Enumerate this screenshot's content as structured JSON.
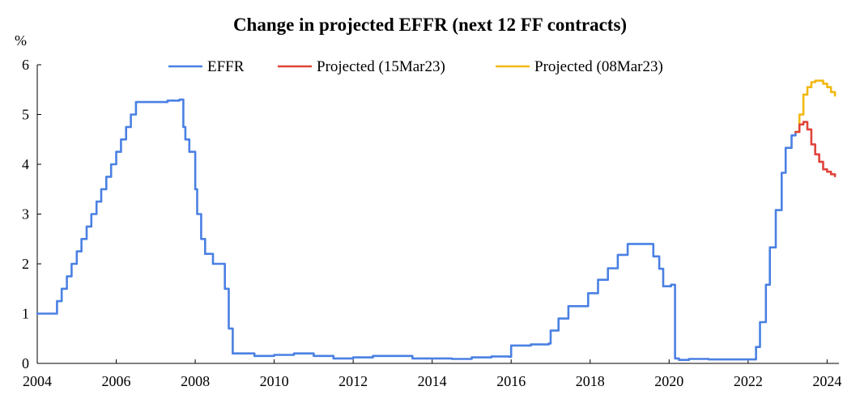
{
  "chart_data": {
    "type": "line",
    "title": "Change in projected EFFR (next 12 FF contracts)",
    "ylabel": "%",
    "xlabel": "",
    "xlim": [
      2004,
      2024.3
    ],
    "ylim": [
      0,
      6
    ],
    "x_ticks": [
      2004,
      2006,
      2008,
      2010,
      2012,
      2014,
      2016,
      2018,
      2020,
      2022,
      2024
    ],
    "y_ticks": [
      0,
      1,
      2,
      3,
      4,
      5,
      6
    ],
    "grid": false,
    "legend_position": "top-center",
    "series": [
      {
        "name": "EFFR",
        "color": "#4a80e3",
        "x": [
          2004.0,
          2004.45,
          2004.5,
          2004.62,
          2004.75,
          2004.87,
          2005.0,
          2005.12,
          2005.25,
          2005.37,
          2005.5,
          2005.62,
          2005.75,
          2005.87,
          2006.0,
          2006.12,
          2006.25,
          2006.37,
          2006.5,
          2006.8,
          2007.0,
          2007.3,
          2007.6,
          2007.7,
          2007.75,
          2007.85,
          2008.0,
          2008.05,
          2008.15,
          2008.25,
          2008.45,
          2008.6,
          2008.75,
          2008.85,
          2008.95,
          2009.2,
          2009.5,
          2010.0,
          2010.5,
          2011.0,
          2011.5,
          2012.0,
          2012.5,
          2013.0,
          2013.5,
          2014.0,
          2014.5,
          2015.0,
          2015.5,
          2015.95,
          2016.0,
          2016.5,
          2016.95,
          2017.0,
          2017.2,
          2017.45,
          2017.95,
          2018.2,
          2018.45,
          2018.7,
          2018.95,
          2019.5,
          2019.6,
          2019.75,
          2019.85,
          2020.05,
          2020.15,
          2020.25,
          2020.5,
          2021.0,
          2021.5,
          2022.0,
          2022.2,
          2022.3,
          2022.45,
          2022.55,
          2022.7,
          2022.85,
          2022.95,
          2023.1,
          2023.2
        ],
        "y": [
          1.0,
          1.0,
          1.25,
          1.5,
          1.75,
          2.0,
          2.25,
          2.5,
          2.75,
          3.0,
          3.25,
          3.5,
          3.75,
          4.0,
          4.25,
          4.5,
          4.75,
          5.0,
          5.25,
          5.25,
          5.25,
          5.28,
          5.3,
          4.75,
          4.5,
          4.25,
          3.5,
          3.0,
          2.5,
          2.2,
          2.0,
          2.0,
          1.5,
          0.7,
          0.2,
          0.2,
          0.15,
          0.17,
          0.2,
          0.15,
          0.1,
          0.12,
          0.15,
          0.15,
          0.1,
          0.1,
          0.09,
          0.12,
          0.14,
          0.13,
          0.36,
          0.38,
          0.4,
          0.66,
          0.9,
          1.15,
          1.41,
          1.68,
          1.91,
          2.18,
          2.4,
          2.4,
          2.15,
          1.9,
          1.55,
          1.58,
          0.1,
          0.07,
          0.09,
          0.08,
          0.08,
          0.08,
          0.33,
          0.83,
          1.58,
          2.33,
          3.08,
          3.83,
          4.33,
          4.58,
          4.65
        ]
      },
      {
        "name": "Projected (15Mar23)",
        "color": "#e0443a",
        "x": [
          2023.2,
          2023.3,
          2023.4,
          2023.5,
          2023.6,
          2023.7,
          2023.8,
          2023.9,
          2024.0,
          2024.1,
          2024.2
        ],
        "y": [
          4.65,
          4.8,
          4.85,
          4.7,
          4.4,
          4.2,
          4.05,
          3.9,
          3.85,
          3.8,
          3.76
        ]
      },
      {
        "name": "Projected (08Mar23)",
        "color": "#f2b811",
        "x": [
          2023.2,
          2023.3,
          2023.4,
          2023.5,
          2023.6,
          2023.7,
          2023.8,
          2023.9,
          2024.0,
          2024.1,
          2024.2
        ],
        "y": [
          4.65,
          5.0,
          5.4,
          5.55,
          5.65,
          5.68,
          5.68,
          5.62,
          5.55,
          5.45,
          5.38
        ]
      }
    ]
  }
}
